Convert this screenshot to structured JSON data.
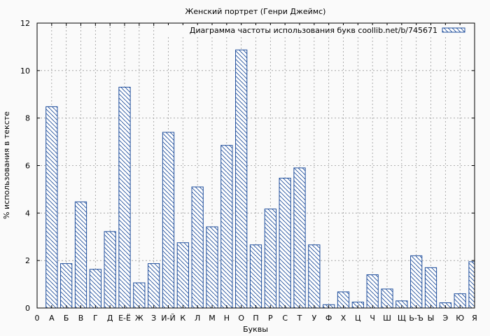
{
  "chart_data": {
    "type": "bar",
    "title": "Женский портрет (Генри Джеймс)",
    "xlabel": "Буквы",
    "ylabel": "% использования в тексте",
    "ylim": [
      0,
      12
    ],
    "yticks": [
      "0",
      "2",
      "4",
      "6",
      "8",
      "10",
      "12"
    ],
    "grid": true,
    "legend_position": "top-right",
    "series": [
      {
        "name": "Диаграмма частоты использования букв coollib.net/b/745671",
        "color": "#1f4e9c",
        "pattern": "diagonal-hatch"
      }
    ],
    "categories": [
      "0",
      "А",
      "Б",
      "В",
      "Г",
      "Д",
      "Е-Ё",
      "Ж",
      "З",
      "И-Й",
      "К",
      "Л",
      "М",
      "Н",
      "О",
      "П",
      "Р",
      "С",
      "Т",
      "У",
      "Ф",
      "Х",
      "Ц",
      "Ч",
      "Ш",
      "Щ",
      "Ь-Ъ",
      "Ы",
      "Э",
      "Ю",
      "Я"
    ],
    "values": [
      0,
      8.48,
      1.87,
      4.47,
      1.63,
      3.22,
      9.3,
      1.06,
      1.87,
      7.4,
      2.75,
      5.1,
      3.42,
      6.85,
      10.87,
      2.66,
      4.17,
      5.47,
      5.9,
      2.66,
      0.14,
      0.68,
      0.25,
      1.4,
      0.8,
      0.3,
      2.2,
      1.7,
      0.22,
      0.6,
      1.95
    ]
  }
}
